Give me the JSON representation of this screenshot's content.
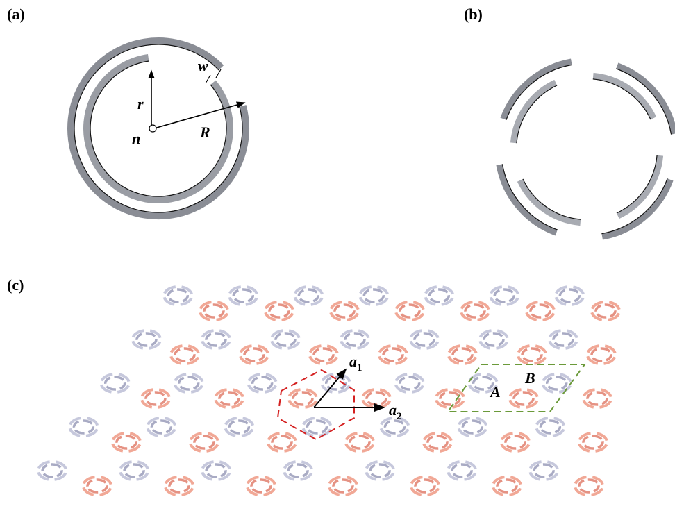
{
  "panels": {
    "a": {
      "label": "(a)",
      "symbols": {
        "w": "w",
        "r": "r",
        "R": "R",
        "n": "n"
      }
    },
    "b": {
      "label": "(b)"
    },
    "c": {
      "label": "(c)",
      "vectors": {
        "a1": {
          "main": "a",
          "sub": "1"
        },
        "a2": {
          "main": "a",
          "sub": "2"
        }
      },
      "sites": {
        "A": "A",
        "B": "B"
      }
    }
  }
}
